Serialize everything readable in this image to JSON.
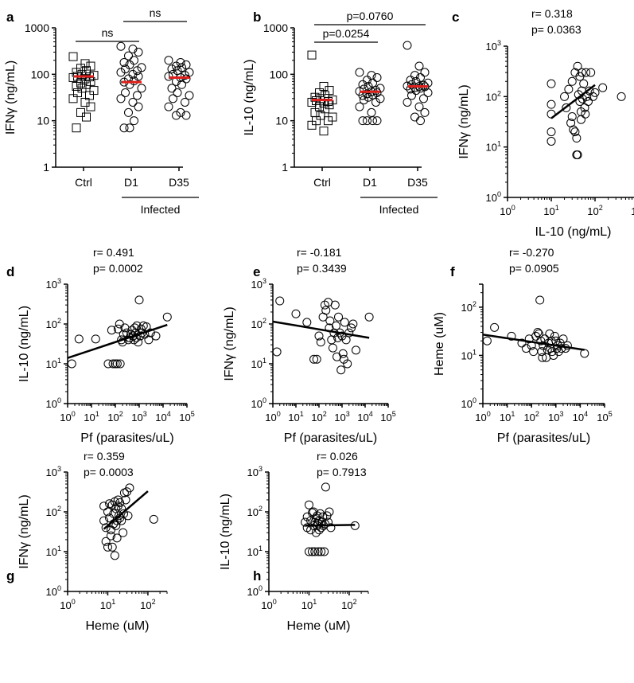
{
  "chart_data": [
    {
      "panel": "a",
      "type": "scatter",
      "subtype": "dot-plot",
      "ylabel": "IFNγ (ng/mL)",
      "yscale": "log",
      "ylim": [
        1,
        1000
      ],
      "yticks": [
        "1",
        "10",
        "100",
        "1000"
      ],
      "categories": [
        "Ctrl",
        "D1",
        "D35"
      ],
      "group_label": "Infected",
      "group_covers": [
        "D1",
        "D35"
      ],
      "markers": [
        "square",
        "circle",
        "circle"
      ],
      "medians": [
        90,
        68,
        85
      ],
      "points": [
        [
          240,
          170,
          150,
          135,
          120,
          110,
          100,
          95,
          90,
          88,
          85,
          80,
          70,
          65,
          60,
          55,
          50,
          45,
          40,
          35,
          30,
          25,
          20,
          15,
          12,
          7
        ],
        [
          400,
          350,
          300,
          250,
          200,
          180,
          160,
          140,
          130,
          120,
          110,
          100,
          90,
          80,
          72,
          68,
          60,
          50,
          40,
          35,
          30,
          25,
          20,
          15,
          10,
          7,
          7
        ],
        [
          200,
          180,
          160,
          150,
          140,
          130,
          120,
          110,
          100,
          95,
          90,
          85,
          80,
          70,
          60,
          50,
          40,
          35,
          30,
          25,
          20,
          15,
          13,
          13
        ]
      ],
      "comparisons": [
        {
          "from": "Ctrl",
          "to": "D1",
          "label": "ns"
        },
        {
          "from": "D1",
          "to": "D35",
          "label": "ns"
        }
      ]
    },
    {
      "panel": "b",
      "type": "scatter",
      "subtype": "dot-plot",
      "ylabel": "IL-10 (ng/mL)",
      "yscale": "log",
      "ylim": [
        1,
        1000
      ],
      "yticks": [
        "1",
        "10",
        "100",
        "1000"
      ],
      "categories": [
        "Ctrl",
        "D1",
        "D35"
      ],
      "group_label": "Infected",
      "group_covers": [
        "D1",
        "D35"
      ],
      "markers": [
        "square",
        "circle",
        "circle"
      ],
      "medians": [
        28,
        42,
        55
      ],
      "points": [
        [
          260,
          55,
          45,
          40,
          35,
          32,
          30,
          28,
          27,
          26,
          25,
          24,
          22,
          20,
          18,
          15,
          13,
          12,
          10,
          10,
          8,
          6
        ],
        [
          110,
          95,
          85,
          75,
          65,
          60,
          55,
          50,
          48,
          45,
          43,
          42,
          40,
          38,
          36,
          35,
          32,
          30,
          28,
          25,
          20,
          15,
          10,
          10,
          10,
          10
        ],
        [
          420,
          150,
          110,
          95,
          85,
          75,
          70,
          65,
          60,
          58,
          56,
          55,
          54,
          52,
          50,
          48,
          45,
          40,
          35,
          30,
          25,
          20,
          15,
          12,
          10
        ]
      ],
      "comparisons": [
        {
          "from": "Ctrl",
          "to": "D1",
          "label": "p=0.0254"
        },
        {
          "from": "Ctrl",
          "to": "D35",
          "label": "p=0.0760"
        }
      ]
    },
    {
      "panel": "c",
      "type": "scatter",
      "xlabel": "IL-10 (ng/mL)",
      "ylabel": "IFNγ (ng/mL)",
      "xscale": "log",
      "yscale": "log",
      "xlim": [
        1,
        1000
      ],
      "ylim": [
        1,
        1000
      ],
      "r_text": "r= 0.318",
      "p_text": "p= 0.0363",
      "fit": {
        "x": [
          10,
          100
        ],
        "y": [
          37,
          170
        ]
      },
      "points": [
        [
          10,
          180
        ],
        [
          10,
          70
        ],
        [
          10,
          45
        ],
        [
          10,
          20
        ],
        [
          10,
          13
        ],
        [
          20,
          100
        ],
        [
          22,
          60
        ],
        [
          25,
          140
        ],
        [
          28,
          30
        ],
        [
          30,
          200
        ],
        [
          30,
          40
        ],
        [
          32,
          22
        ],
        [
          35,
          20
        ],
        [
          35,
          300
        ],
        [
          38,
          15
        ],
        [
          38,
          7
        ],
        [
          40,
          7
        ],
        [
          40,
          400
        ],
        [
          42,
          110
        ],
        [
          45,
          250
        ],
        [
          45,
          80
        ],
        [
          48,
          50
        ],
        [
          48,
          35
        ],
        [
          50,
          300
        ],
        [
          50,
          130
        ],
        [
          52,
          90
        ],
        [
          55,
          180
        ],
        [
          58,
          60
        ],
        [
          60,
          45
        ],
        [
          62,
          300
        ],
        [
          65,
          100
        ],
        [
          70,
          80
        ],
        [
          75,
          130
        ],
        [
          80,
          300
        ],
        [
          90,
          100
        ],
        [
          100,
          120
        ],
        [
          150,
          150
        ],
        [
          400,
          100
        ]
      ]
    },
    {
      "panel": "d",
      "type": "scatter",
      "xlabel": "Pf (parasites/uL)",
      "ylabel": "IL-10 (ng/mL)",
      "xscale": "log",
      "yscale": "log",
      "xlim": [
        1,
        100000
      ],
      "ylim": [
        1,
        1000
      ],
      "r_text": "r= 0.491",
      "p_text": "p= 0.0002",
      "fit": {
        "x": [
          1,
          15000
        ],
        "y": [
          14,
          95
        ]
      },
      "points": [
        [
          1.5,
          10
        ],
        [
          3,
          42
        ],
        [
          15,
          42
        ],
        [
          50,
          10
        ],
        [
          70,
          70
        ],
        [
          80,
          10
        ],
        [
          100,
          10
        ],
        [
          120,
          10
        ],
        [
          130,
          75
        ],
        [
          150,
          100
        ],
        [
          160,
          10
        ],
        [
          180,
          40
        ],
        [
          200,
          35
        ],
        [
          220,
          55
        ],
        [
          250,
          80
        ],
        [
          300,
          60
        ],
        [
          350,
          40
        ],
        [
          400,
          45
        ],
        [
          450,
          55
        ],
        [
          500,
          70
        ],
        [
          550,
          50
        ],
        [
          600,
          40
        ],
        [
          650,
          80
        ],
        [
          700,
          60
        ],
        [
          750,
          45
        ],
        [
          800,
          90
        ],
        [
          900,
          35
        ],
        [
          1000,
          400
        ],
        [
          1100,
          50
        ],
        [
          1200,
          75
        ],
        [
          1300,
          60
        ],
        [
          1500,
          90
        ],
        [
          1700,
          55
        ],
        [
          2000,
          85
        ],
        [
          2500,
          40
        ],
        [
          3000,
          60
        ],
        [
          5000,
          50
        ],
        [
          15000,
          150
        ]
      ]
    },
    {
      "panel": "e",
      "type": "scatter",
      "xlabel": "Pf (parasites/uL)",
      "ylabel": "IFNγ (ng/mL)",
      "xscale": "log",
      "yscale": "log",
      "xlim": [
        1,
        100000
      ],
      "ylim": [
        1,
        1000
      ],
      "r_text": "r= -0.181",
      "p_text": "p= 0.3439",
      "fit": {
        "x": [
          1,
          15000
        ],
        "y": [
          115,
          45
        ]
      },
      "points": [
        [
          1.5,
          20
        ],
        [
          2,
          380
        ],
        [
          10,
          180
        ],
        [
          30,
          110
        ],
        [
          60,
          13
        ],
        [
          80,
          13
        ],
        [
          100,
          50
        ],
        [
          120,
          35
        ],
        [
          150,
          150
        ],
        [
          180,
          300
        ],
        [
          200,
          220
        ],
        [
          250,
          350
        ],
        [
          280,
          80
        ],
        [
          300,
          120
        ],
        [
          350,
          40
        ],
        [
          400,
          25
        ],
        [
          450,
          60
        ],
        [
          500,
          300
        ],
        [
          550,
          90
        ],
        [
          600,
          15
        ],
        [
          650,
          45
        ],
        [
          700,
          150
        ],
        [
          800,
          60
        ],
        [
          900,
          7
        ],
        [
          1000,
          50
        ],
        [
          1100,
          18
        ],
        [
          1200,
          13
        ],
        [
          1300,
          110
        ],
        [
          1500,
          40
        ],
        [
          1700,
          10
        ],
        [
          2000,
          60
        ],
        [
          2500,
          80
        ],
        [
          3000,
          100
        ],
        [
          4000,
          22
        ],
        [
          15000,
          150
        ]
      ]
    },
    {
      "panel": "f",
      "type": "scatter",
      "xlabel": "Pf (parasites/uL)",
      "ylabel": "Heme (uM)",
      "xscale": "log",
      "yscale": "log",
      "xlim": [
        1,
        100000
      ],
      "ylim": [
        1,
        300
      ],
      "yticks_labeled": [
        "10^0",
        "10^1",
        "10^2"
      ],
      "r_text": "r= -0.270",
      "p_text": "p= 0.0905",
      "fit": {
        "x": [
          1,
          15000
        ],
        "y": [
          27,
          13
        ]
      },
      "points": [
        [
          1.5,
          20
        ],
        [
          3,
          38
        ],
        [
          15,
          25
        ],
        [
          40,
          18
        ],
        [
          60,
          14
        ],
        [
          80,
          22
        ],
        [
          100,
          16
        ],
        [
          120,
          12
        ],
        [
          150,
          25
        ],
        [
          180,
          30
        ],
        [
          200,
          28
        ],
        [
          220,
          140
        ],
        [
          240,
          20
        ],
        [
          260,
          12
        ],
        [
          280,
          9
        ],
        [
          300,
          16
        ],
        [
          350,
          22
        ],
        [
          400,
          9
        ],
        [
          450,
          13
        ],
        [
          500,
          18
        ],
        [
          550,
          28
        ],
        [
          600,
          14
        ],
        [
          650,
          20
        ],
        [
          700,
          12
        ],
        [
          800,
          10
        ],
        [
          900,
          25
        ],
        [
          1000,
          20
        ],
        [
          1100,
          14
        ],
        [
          1200,
          16
        ],
        [
          1300,
          12
        ],
        [
          1500,
          18
        ],
        [
          1700,
          14
        ],
        [
          2000,
          22
        ],
        [
          2500,
          14
        ],
        [
          3000,
          16
        ],
        [
          15000,
          11
        ]
      ]
    },
    {
      "panel": "g",
      "type": "scatter",
      "xlabel": "Heme (uM)",
      "ylabel": "IFNγ (ng/mL)",
      "xscale": "log",
      "yscale": "log",
      "xlim": [
        1,
        300
      ],
      "ylim": [
        1,
        1000
      ],
      "r_text": "r= 0.359",
      "p_text": "p= 0.0003",
      "fit": {
        "x": [
          8,
          100
        ],
        "y": [
          37,
          330
        ]
      },
      "points": [
        [
          8,
          140
        ],
        [
          8,
          60
        ],
        [
          9,
          40
        ],
        [
          9,
          18
        ],
        [
          10,
          13
        ],
        [
          10,
          100
        ],
        [
          11,
          160
        ],
        [
          11,
          70
        ],
        [
          12,
          35
        ],
        [
          12,
          25
        ],
        [
          13,
          150
        ],
        [
          13,
          13
        ],
        [
          14,
          50
        ],
        [
          14,
          90
        ],
        [
          15,
          8
        ],
        [
          15,
          180
        ],
        [
          16,
          45
        ],
        [
          16,
          120
        ],
        [
          17,
          22
        ],
        [
          17,
          60
        ],
        [
          18,
          140
        ],
        [
          18,
          200
        ],
        [
          19,
          80
        ],
        [
          20,
          70
        ],
        [
          20,
          170
        ],
        [
          22,
          60
        ],
        [
          22,
          120
        ],
        [
          24,
          30
        ],
        [
          25,
          90
        ],
        [
          26,
          300
        ],
        [
          28,
          200
        ],
        [
          30,
          320
        ],
        [
          32,
          80
        ],
        [
          35,
          400
        ],
        [
          140,
          65
        ]
      ]
    },
    {
      "panel": "h",
      "type": "scatter",
      "xlabel": "Heme (uM)",
      "ylabel": "IL-10 (ng/mL)",
      "xscale": "log",
      "yscale": "log",
      "xlim": [
        1,
        300
      ],
      "ylim": [
        1,
        1000
      ],
      "r_text": "r= 0.026",
      "p_text": "p= 0.7913",
      "fit": {
        "x": [
          8,
          140
        ],
        "y": [
          45,
          47
        ]
      },
      "points": [
        [
          8,
          55
        ],
        [
          9,
          40
        ],
        [
          9,
          75
        ],
        [
          10,
          150
        ],
        [
          10,
          10
        ],
        [
          11,
          60
        ],
        [
          11,
          35
        ],
        [
          12,
          95
        ],
        [
          12,
          10
        ],
        [
          13,
          45
        ],
        [
          13,
          100
        ],
        [
          14,
          55
        ],
        [
          14,
          10
        ],
        [
          15,
          30
        ],
        [
          15,
          70
        ],
        [
          16,
          45
        ],
        [
          16,
          80
        ],
        [
          17,
          50
        ],
        [
          17,
          10
        ],
        [
          18,
          35
        ],
        [
          18,
          60
        ],
        [
          19,
          90
        ],
        [
          20,
          40
        ],
        [
          20,
          10
        ],
        [
          21,
          55
        ],
        [
          22,
          75
        ],
        [
          23,
          45
        ],
        [
          24,
          10
        ],
        [
          25,
          50
        ],
        [
          26,
          420
        ],
        [
          28,
          80
        ],
        [
          30,
          55
        ],
        [
          32,
          100
        ],
        [
          35,
          40
        ],
        [
          140,
          45
        ]
      ]
    }
  ]
}
